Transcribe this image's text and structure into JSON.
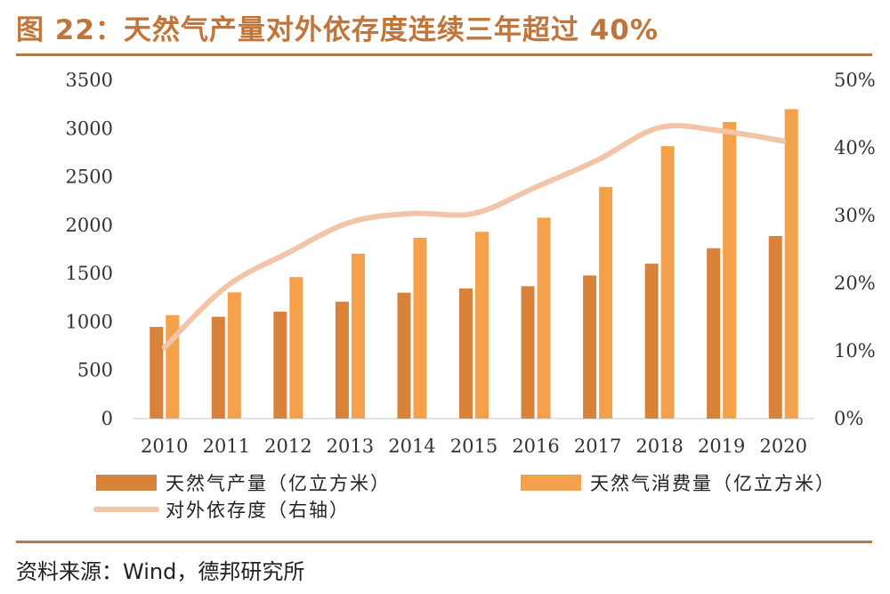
{
  "title": "图 22：天然气产量对外依存度连续三年超过 40%",
  "source": "资料来源：Wind，德邦研究所",
  "colors": {
    "production": "#d9823a",
    "consumption": "#f5a04b",
    "dependency": "#f2c4a8",
    "rule": "#b07a4e",
    "title": "#c0753a"
  },
  "chart_data": {
    "type": "bar",
    "categories": [
      "2010",
      "2011",
      "2012",
      "2013",
      "2014",
      "2015",
      "2016",
      "2017",
      "2018",
      "2019",
      "2020"
    ],
    "series": [
      {
        "name": "天然气产量（亿立方米）",
        "type": "bar",
        "axis": "left",
        "values": [
          948,
          1053,
          1106,
          1209,
          1302,
          1346,
          1369,
          1480,
          1602,
          1762,
          1888
        ]
      },
      {
        "name": "天然气消费量（亿立方米）",
        "type": "bar",
        "axis": "left",
        "values": [
          1069,
          1305,
          1463,
          1705,
          1870,
          1932,
          2078,
          2394,
          2817,
          3067,
          3200
        ]
      },
      {
        "name": "对外依存度（右轴）",
        "type": "line",
        "axis": "right",
        "values": [
          10.5,
          19.5,
          24.5,
          29.0,
          30.3,
          30.3,
          34.2,
          38.2,
          43.0,
          42.5,
          41.0
        ]
      }
    ],
    "y_left": {
      "min": 0,
      "max": 3500,
      "ticks": [
        "0",
        "500",
        "1000",
        "1500",
        "2000",
        "2500",
        "3000",
        "3500"
      ]
    },
    "y_right": {
      "min": 0,
      "max": 50,
      "ticks": [
        "0%",
        "10%",
        "20%",
        "30%",
        "40%",
        "50%"
      ]
    },
    "grid": false,
    "legend_position": "bottom"
  }
}
